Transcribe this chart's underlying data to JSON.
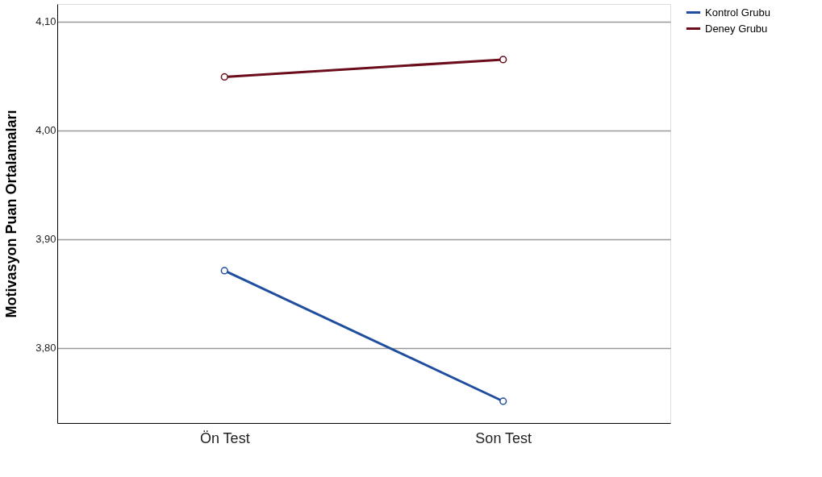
{
  "chart_data": {
    "type": "line",
    "ylabel": "Motivasyon Puan Ortalamaları",
    "categories": [
      "Ön Test",
      "Son Test"
    ],
    "series": [
      {
        "name": "Kontrol Grubu",
        "color": "#1f4e9e",
        "values": [
          3.871,
          3.751
        ]
      },
      {
        "name": "Deney Grubu",
        "color": "#6b0d1a",
        "values": [
          4.049,
          4.065
        ]
      }
    ],
    "ylim": [
      3.731,
      4.116
    ],
    "yticks": [
      {
        "value": 3.8,
        "label": "3,80"
      },
      {
        "value": 3.9,
        "label": "3,90"
      },
      {
        "value": 4.0,
        "label": "4,00"
      },
      {
        "value": 4.1,
        "label": "4,10"
      }
    ],
    "grid": "y",
    "legend": "top right",
    "marker": "circle",
    "line_style": "solid"
  }
}
